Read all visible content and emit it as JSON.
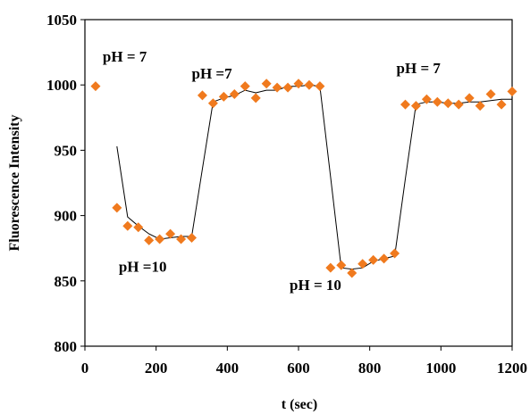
{
  "chart_data": {
    "type": "scatter",
    "title": "",
    "xlabel": "t (sec)",
    "ylabel": "Fluorescence Intensity",
    "xlim": [
      0,
      1200
    ],
    "ylim": [
      800,
      1050
    ],
    "xticks": [
      0,
      200,
      400,
      600,
      800,
      1000,
      1200
    ],
    "yticks": [
      800,
      850,
      900,
      950,
      1000,
      1050
    ],
    "grid": false,
    "legend": "none",
    "marker_color": "#f07a1e",
    "line_color": "#000000",
    "series": [
      {
        "kind": "points",
        "marker": "diamond",
        "x": [
          30,
          90,
          120,
          150,
          180,
          210,
          240,
          270,
          300,
          330,
          360,
          390,
          420,
          450,
          480,
          510,
          540,
          570,
          600,
          630,
          660,
          690,
          720,
          750,
          780,
          810,
          840,
          870,
          900,
          930,
          960,
          990,
          1020,
          1050,
          1080,
          1110,
          1140,
          1170,
          1200
        ],
        "y": [
          999,
          906,
          892,
          891,
          881,
          882,
          886,
          882,
          883,
          992,
          986,
          991,
          993,
          999,
          990,
          1001,
          998,
          998,
          1001,
          1000,
          999,
          860,
          862,
          856,
          863,
          866,
          867,
          871,
          985,
          984,
          989,
          987,
          986,
          985,
          990,
          984,
          993,
          985,
          995
        ]
      },
      {
        "kind": "line",
        "x": [
          90,
          120,
          150,
          180,
          210,
          240,
          270,
          300,
          330,
          360,
          390,
          420,
          450,
          480,
          510,
          540,
          570,
          600,
          630,
          660,
          690,
          720,
          750,
          780,
          810,
          840,
          870,
          900,
          930,
          960,
          990,
          1020,
          1050,
          1080,
          1110,
          1140,
          1170,
          1200
        ],
        "y": [
          953,
          899,
          892,
          886,
          882,
          883,
          884,
          884,
          936,
          987,
          990,
          992,
          996,
          994,
          996,
          996,
          999,
          999,
          1000,
          999,
          930,
          860,
          859,
          860,
          865,
          867,
          869,
          928,
          985,
          987,
          987,
          986,
          986,
          987,
          987,
          988,
          989,
          989
        ]
      }
    ],
    "annotations": [
      {
        "text": "pH = 7",
        "x": 50,
        "y": 1018
      },
      {
        "text": "pH =10",
        "x": 95,
        "y": 857
      },
      {
        "text": "pH =7",
        "x": 300,
        "y": 1005
      },
      {
        "text": "pH = 10",
        "x": 575,
        "y": 843
      },
      {
        "text": "pH = 7",
        "x": 875,
        "y": 1009
      }
    ]
  }
}
